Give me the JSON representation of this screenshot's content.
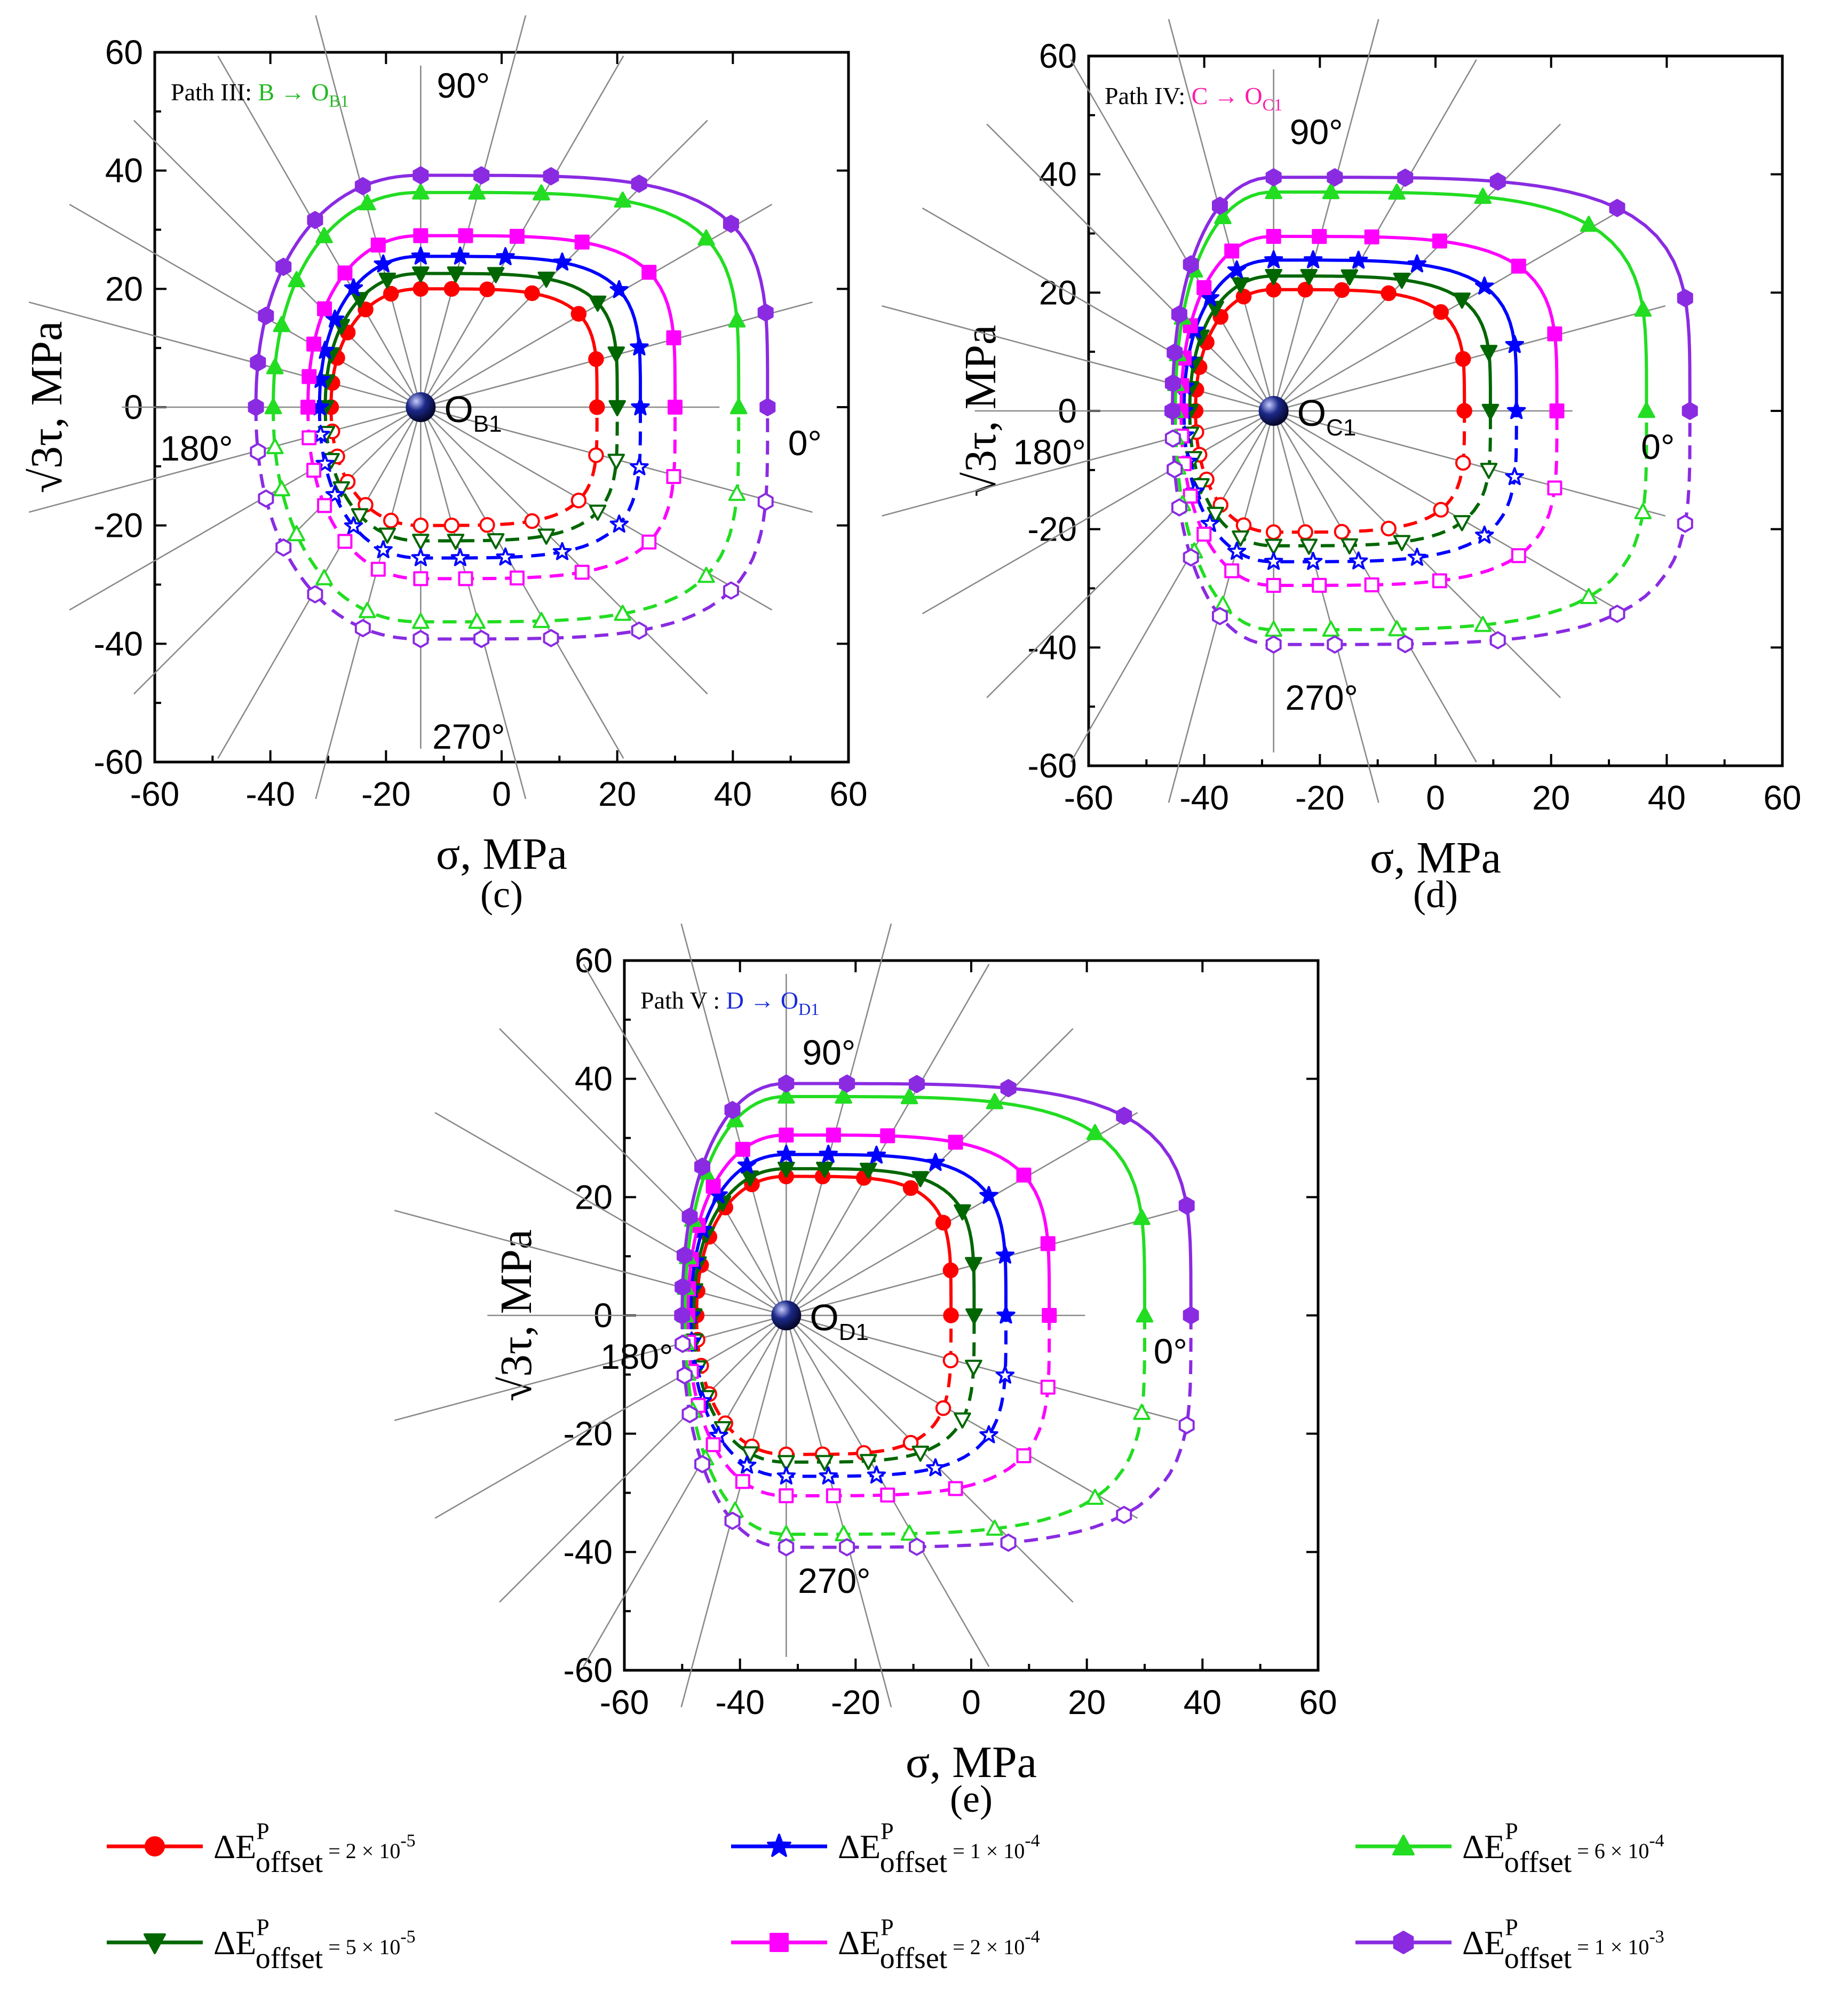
{
  "chart_data": [
    {
      "type": "line",
      "panel": "(c)",
      "path_label": "Path III:",
      "path_label_arrow": "B → O",
      "path_label_sub": "B1",
      "path_label_color": "#22b822",
      "origin_label": "O",
      "origin_sub": "B1",
      "center": [
        -14,
        0
      ],
      "xlabel": "σ, MPa",
      "ylabel": "√3τ, MPa",
      "xlim": [
        -60,
        60
      ],
      "ylim": [
        -60,
        60
      ],
      "xticks": [
        "-60",
        "-40",
        "-20",
        "0",
        "20",
        "40",
        "60"
      ],
      "yticks": [
        "60",
        "40",
        "20",
        "0",
        "-20",
        "-40",
        "-60"
      ],
      "angle_labels": [
        "0°",
        "90°",
        "180°",
        "270°"
      ],
      "series": [
        {
          "name": "2e-5",
          "right_x": 16.5,
          "radius": 20.0,
          "left_x": -29.5
        },
        {
          "name": "5e-5",
          "right_x": 20,
          "radius": 22.6,
          "left_x": -30.5
        },
        {
          "name": "1e-4",
          "right_x": 24,
          "radius": 25.5,
          "left_x": -31.5
        },
        {
          "name": "2e-4",
          "right_x": 30,
          "radius": 29.0,
          "left_x": -33.5
        },
        {
          "name": "6e-4",
          "right_x": 41,
          "radius": 36.3,
          "left_x": -39.5
        },
        {
          "name": "1e-3",
          "right_x": 46,
          "radius": 39.2,
          "left_x": -42.5
        }
      ]
    },
    {
      "type": "line",
      "panel": "(d)",
      "path_label": "Path IV:",
      "path_label_arrow": "C → O",
      "path_label_sub": "C1",
      "path_label_color": "#ff1aa8",
      "origin_label": "O",
      "origin_sub": "C1",
      "center": [
        -28,
        0
      ],
      "xlabel": "σ, MPa",
      "ylabel": "√3τ, MPa",
      "xlim": [
        -60,
        60
      ],
      "ylim": [
        -60,
        60
      ],
      "xticks": [
        "-60",
        "-40",
        "-20",
        "0",
        "20",
        "40",
        "60"
      ],
      "yticks": [
        "60",
        "40",
        "20",
        "0",
        "-20",
        "-40",
        "-60"
      ],
      "angle_labels": [
        "0°",
        "90°",
        "180°",
        "270°"
      ],
      "series": [
        {
          "name": "2e-5",
          "right_x": 5,
          "radius": 20.5,
          "left_x": -41.5
        },
        {
          "name": "5e-5",
          "right_x": 9.5,
          "radius": 22.8,
          "left_x": -42.5
        },
        {
          "name": "1e-4",
          "right_x": 14,
          "radius": 25.5,
          "left_x": -43.5
        },
        {
          "name": "2e-4",
          "right_x": 21,
          "radius": 29.5,
          "left_x": -44
        },
        {
          "name": "6e-4",
          "right_x": 36.5,
          "radius": 37.0,
          "left_x": -45
        },
        {
          "name": "1e-3",
          "right_x": 44,
          "radius": 39.5,
          "left_x": -45.5
        }
      ]
    },
    {
      "type": "line",
      "panel": "(e)",
      "path_label": "Path V :",
      "path_label_arrow": "D → O",
      "path_label_sub": "D1",
      "path_label_color": "#1a2bd8",
      "origin_label": "O",
      "origin_sub": "D1",
      "center": [
        -32,
        0
      ],
      "xlabel": "σ, MPa",
      "ylabel": "√3τ, MPa",
      "xlim": [
        -60,
        60
      ],
      "ylim": [
        -60,
        60
      ],
      "xticks": [
        "-60",
        "-40",
        "-20",
        "0",
        "20",
        "40",
        "60"
      ],
      "yticks": [
        "60",
        "40",
        "20",
        "0",
        "-20",
        "-40",
        "-60"
      ],
      "angle_labels": [
        "0°",
        "90°",
        "180°",
        "270°"
      ],
      "series": [
        {
          "name": "2e-5",
          "right_x": -3.5,
          "radius": 23.5,
          "left_x": -47.5
        },
        {
          "name": "5e-5",
          "right_x": 0.5,
          "radius": 24.8,
          "left_x": -48
        },
        {
          "name": "1e-4",
          "right_x": 6,
          "radius": 27.2,
          "left_x": -48.5
        },
        {
          "name": "2e-4",
          "right_x": 13.5,
          "radius": 30.5,
          "left_x": -49
        },
        {
          "name": "6e-4",
          "right_x": 30,
          "radius": 37.0,
          "left_x": -49.5
        },
        {
          "name": "1e-3",
          "right_x": 38,
          "radius": 39.2,
          "left_x": -50
        }
      ]
    }
  ],
  "legend": [
    {
      "key": "2e-5",
      "color": "#ff0000",
      "marker": "circle",
      "text": "ΔE",
      "sup": "P",
      "sub": "offset",
      "value": " = 2 × 10",
      "exp": "-5"
    },
    {
      "key": "1e-4",
      "color": "#0000ff",
      "marker": "star",
      "text": "ΔE",
      "sup": "P",
      "sub": "offset",
      "value": " = 1 × 10",
      "exp": "-4"
    },
    {
      "key": "6e-4",
      "color": "#22dd22",
      "marker": "triangle-up",
      "text": "ΔE",
      "sup": "P",
      "sub": "offset",
      "value": " = 6 × 10",
      "exp": "-4"
    },
    {
      "key": "5e-5",
      "color": "#006600",
      "marker": "triangle-down",
      "text": "ΔE",
      "sup": "P",
      "sub": "offset",
      "value": " = 5 × 10",
      "exp": "-5"
    },
    {
      "key": "2e-4",
      "color": "#ff00ff",
      "marker": "square",
      "text": "ΔE",
      "sup": "P",
      "sub": "offset",
      "value": " = 2 × 10",
      "exp": "-4"
    },
    {
      "key": "1e-3",
      "color": "#8a2be2",
      "marker": "hexagon",
      "text": "ΔE",
      "sup": "P",
      "sub": "offset",
      "value": " = 1 ×  10",
      "exp": "-3"
    }
  ]
}
